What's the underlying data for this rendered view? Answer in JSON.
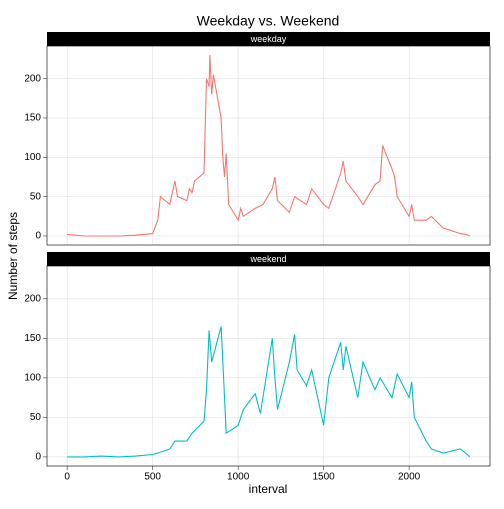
{
  "chart_data": {
    "type": "line",
    "title": "Weekday vs. Weekend",
    "xlabel": "interval",
    "ylabel": "Number of steps",
    "xlim": [
      -118,
      2473
    ],
    "ylim": [
      -11.5,
      241.5
    ],
    "xticks": [
      0,
      500,
      1000,
      1500,
      2000
    ],
    "yticks": [
      0,
      50,
      100,
      150,
      200
    ],
    "grid": true,
    "series": [
      {
        "name": "weekday",
        "color": "#F8766D",
        "x": [
          0,
          100,
          200,
          300,
          400,
          500,
          530,
          545,
          600,
          615,
          630,
          645,
          700,
          715,
          730,
          745,
          800,
          815,
          830,
          835,
          845,
          855,
          900,
          910,
          920,
          930,
          945,
          1000,
          1015,
          1030,
          1100,
          1145,
          1200,
          1215,
          1230,
          1300,
          1330,
          1400,
          1430,
          1500,
          1530,
          1600,
          1615,
          1630,
          1700,
          1730,
          1800,
          1830,
          1845,
          1900,
          1915,
          1930,
          2000,
          2015,
          2030,
          2100,
          2130,
          2200,
          2230,
          2300,
          2330,
          2355
        ],
        "values": [
          2,
          0,
          0,
          0,
          1,
          3,
          20,
          50,
          40,
          55,
          70,
          50,
          45,
          60,
          55,
          70,
          80,
          200,
          190,
          230,
          180,
          205,
          150,
          100,
          75,
          105,
          40,
          20,
          35,
          25,
          35,
          40,
          60,
          75,
          45,
          30,
          50,
          40,
          60,
          40,
          35,
          80,
          95,
          70,
          50,
          40,
          65,
          70,
          115,
          85,
          75,
          50,
          25,
          40,
          20,
          20,
          25,
          10,
          8,
          3,
          2,
          0
        ]
      },
      {
        "name": "weekend",
        "color": "#00BFC4",
        "x": [
          0,
          100,
          200,
          300,
          400,
          500,
          530,
          600,
          630,
          700,
          730,
          800,
          815,
          830,
          845,
          900,
          915,
          930,
          1000,
          1030,
          1100,
          1130,
          1200,
          1215,
          1230,
          1300,
          1330,
          1345,
          1400,
          1430,
          1500,
          1530,
          1600,
          1615,
          1630,
          1700,
          1730,
          1800,
          1830,
          1900,
          1930,
          2000,
          2015,
          2030,
          2100,
          2130,
          2200,
          2300,
          2330,
          2355
        ],
        "values": [
          0,
          0,
          1,
          0,
          1,
          3,
          5,
          10,
          20,
          20,
          30,
          45,
          85,
          160,
          120,
          165,
          100,
          30,
          40,
          60,
          80,
          55,
          150,
          100,
          60,
          120,
          155,
          110,
          90,
          110,
          40,
          100,
          145,
          110,
          140,
          75,
          120,
          85,
          100,
          75,
          105,
          75,
          95,
          50,
          20,
          10,
          5,
          10,
          5,
          0
        ]
      }
    ]
  }
}
